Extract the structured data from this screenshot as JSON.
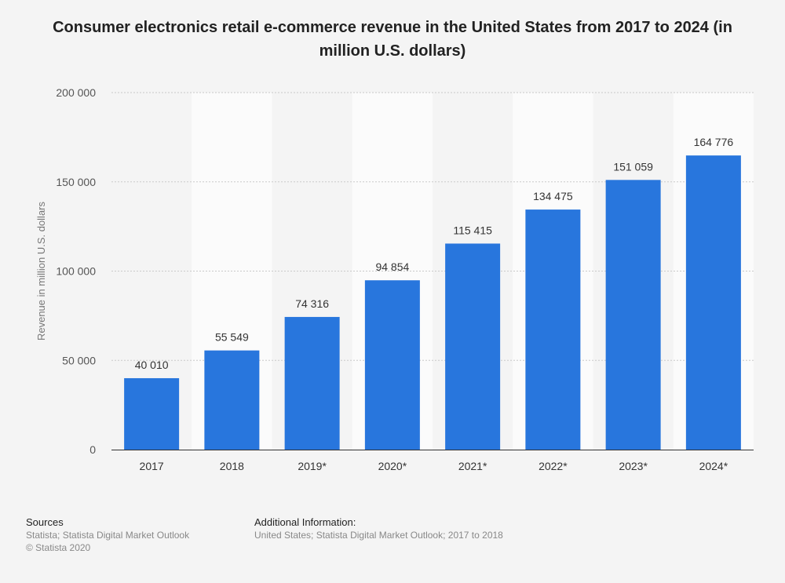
{
  "title": "Consumer electronics retail e-commerce revenue in the United States from 2017 to 2024 (in million U.S. dollars)",
  "chart_data": {
    "type": "bar",
    "title": "Consumer electronics retail e-commerce revenue in the United States from 2017 to 2024 (in million U.S. dollars)",
    "categories": [
      "2017",
      "2018",
      "2019*",
      "2020*",
      "2021*",
      "2022*",
      "2023*",
      "2024*"
    ],
    "values": [
      40010,
      55549,
      74316,
      94854,
      115415,
      134475,
      151059,
      164776
    ],
    "value_labels": [
      "40 010",
      "55 549",
      "74 316",
      "94 854",
      "115 415",
      "134 475",
      "151 059",
      "164 776"
    ],
    "xlabel": "",
    "ylabel": "Revenue in million U.S. dollars",
    "ylim": [
      0,
      200000
    ],
    "yticks": [
      0,
      50000,
      100000,
      150000,
      200000
    ],
    "ytick_labels": [
      "0",
      "50 000",
      "100 000",
      "150 000",
      "200 000"
    ],
    "bar_color": "#2876dd",
    "grid": true,
    "legend": "none"
  },
  "footer": {
    "sources_heading": "Sources",
    "sources_lines": [
      "Statista; Statista Digital Market Outlook",
      "© Statista 2020"
    ],
    "info_heading": "Additional Information:",
    "info_text": "United States; Statista Digital Market Outlook; 2017 to 2018"
  }
}
